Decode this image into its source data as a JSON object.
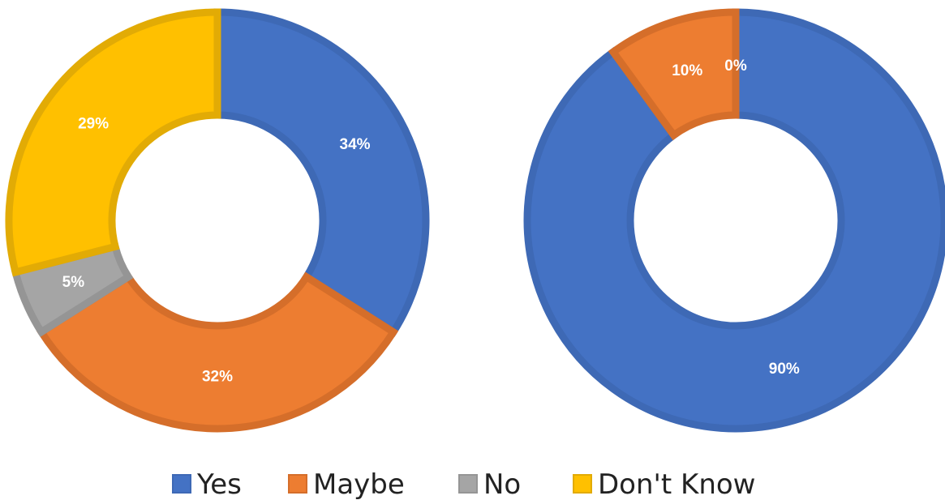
{
  "colors": {
    "Yes": "#4472C4",
    "Maybe": "#ED7D31",
    "No": "#A5A5A5",
    "Don't Know": "#FFC000"
  },
  "borders": {
    "Yes": "#3E69B5",
    "Maybe": "#D56E2A",
    "No": "#959595",
    "Don't Know": "#E2AB05"
  },
  "chart_data": [
    {
      "type": "pie",
      "variant": "donut",
      "title": "",
      "slices": [
        {
          "label": "Yes",
          "value": 34,
          "display": "34%"
        },
        {
          "label": "Maybe",
          "value": 32,
          "display": "32%"
        },
        {
          "label": "No",
          "value": 5,
          "display": "5%"
        },
        {
          "label": "Don't Know",
          "value": 29,
          "display": "29%"
        }
      ]
    },
    {
      "type": "pie",
      "variant": "donut",
      "title": "",
      "slices": [
        {
          "label": "Yes",
          "value": 90,
          "display": "90%"
        },
        {
          "label": "Maybe",
          "value": 10,
          "display": "10%"
        },
        {
          "label": "No",
          "value": 0,
          "display": "0%"
        }
      ]
    }
  ],
  "legend": {
    "position": "bottom",
    "items": [
      "Yes",
      "Maybe",
      "No",
      "Don't Know"
    ]
  }
}
